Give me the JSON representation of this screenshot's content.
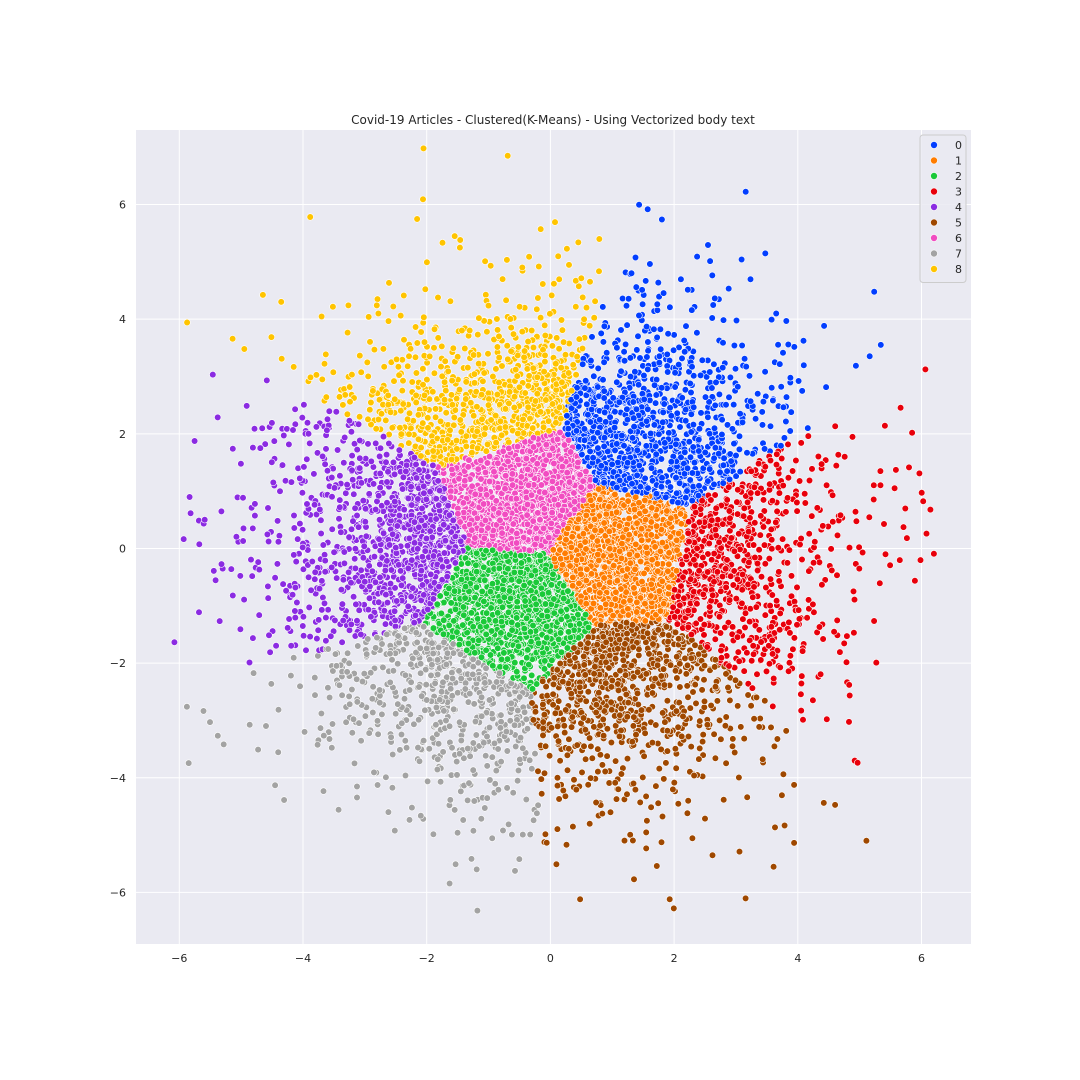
{
  "chart_data": {
    "type": "scatter",
    "title": "Covid-19 Articles - Clustered(K-Means) - Using Vectorized body text",
    "xlabel": "",
    "ylabel": "",
    "xlim": [
      -6.7,
      6.8
    ],
    "ylim": [
      -6.9,
      7.3
    ],
    "x_ticks": [
      "−6",
      "−4",
      "−2",
      "0",
      "2",
      "4",
      "6"
    ],
    "y_ticks": [
      "−6",
      "−4",
      "−2",
      "0",
      "2",
      "4",
      "6"
    ],
    "x_tick_values": [
      -6,
      -4,
      -2,
      0,
      2,
      4,
      6
    ],
    "y_tick_values": [
      -6,
      -4,
      -2,
      0,
      2,
      4,
      6
    ],
    "grid": true,
    "background": "#eaeaf2",
    "legend_position": "top-right",
    "series": [
      {
        "name": "0",
        "color": "#023eff",
        "center": [
          1.5,
          2.0
        ],
        "spread": [
          0.85,
          0.75
        ],
        "approx_points": 1400
      },
      {
        "name": "1",
        "color": "#ff7c00",
        "center": [
          1.0,
          0.0
        ],
        "spread": [
          0.55,
          0.55
        ],
        "approx_points": 1200
      },
      {
        "name": "2",
        "color": "#1ac938",
        "center": [
          -0.6,
          -1.0
        ],
        "spread": [
          0.6,
          0.55
        ],
        "approx_points": 1200
      },
      {
        "name": "3",
        "color": "#e8000b",
        "center": [
          3.2,
          -0.4
        ],
        "spread": [
          0.95,
          1.1
        ],
        "approx_points": 1200
      },
      {
        "name": "4",
        "color": "#8b2be2",
        "center": [
          -2.6,
          0.1
        ],
        "spread": [
          0.9,
          0.8
        ],
        "approx_points": 1200
      },
      {
        "name": "5",
        "color": "#9f4800",
        "center": [
          1.2,
          -2.6
        ],
        "spread": [
          0.9,
          0.9
        ],
        "approx_points": 1100
      },
      {
        "name": "6",
        "color": "#f14cc1",
        "center": [
          -0.4,
          0.9
        ],
        "spread": [
          0.5,
          0.45
        ],
        "approx_points": 900
      },
      {
        "name": "7",
        "color": "#a3a3a3",
        "center": [
          -1.8,
          -2.8
        ],
        "spread": [
          1.0,
          1.0
        ],
        "approx_points": 1000
      },
      {
        "name": "8",
        "color": "#ffc400",
        "center": [
          -1.0,
          2.7
        ],
        "spread": [
          0.95,
          0.75
        ],
        "approx_points": 1200
      }
    ]
  }
}
